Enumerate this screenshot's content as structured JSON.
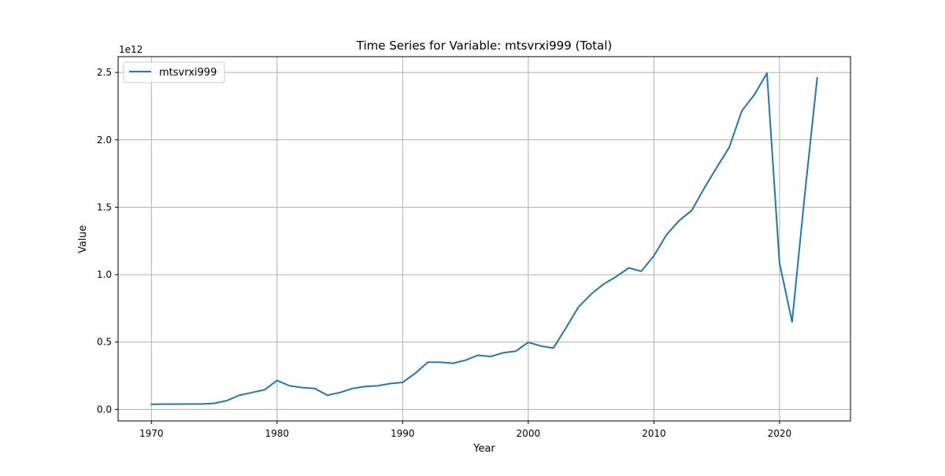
{
  "chart_data": {
    "type": "line",
    "title": "Time Series for Variable: mtsvrxi999 (Total)",
    "xlabel": "Year",
    "ylabel": "Value",
    "offset_label": "1e12",
    "xlim": [
      1967.35,
      2025.65
    ],
    "ylim": [
      -0.0855,
      2.6175
    ],
    "x_ticks": [
      1970,
      1980,
      1990,
      2000,
      2010,
      2020
    ],
    "y_ticks": [
      0.0,
      0.5,
      1.0,
      1.5,
      2.0,
      2.5
    ],
    "x_tick_labels": [
      "1970",
      "1980",
      "1990",
      "2000",
      "2010",
      "2020"
    ],
    "y_tick_labels": [
      "0.0",
      "0.5",
      "1.0",
      "1.5",
      "2.0",
      "2.5"
    ],
    "grid": true,
    "legend_position": "top-left",
    "series": [
      {
        "name": "mtsvrxi999",
        "color": "#1f77b4",
        "x": [
          1970,
          1971,
          1972,
          1973,
          1974,
          1975,
          1976,
          1977,
          1978,
          1979,
          1980,
          1981,
          1982,
          1983,
          1984,
          1985,
          1986,
          1987,
          1988,
          1989,
          1990,
          1991,
          1992,
          1993,
          1994,
          1995,
          1996,
          1997,
          1998,
          1999,
          2000,
          2001,
          2002,
          2003,
          2004,
          2005,
          2006,
          2007,
          2008,
          2009,
          2010,
          2011,
          2012,
          2013,
          2014,
          2015,
          2016,
          2017,
          2018,
          2019,
          2020,
          2021,
          2022,
          2023
        ],
        "values": [
          0.038,
          0.039,
          0.039,
          0.04,
          0.04,
          0.045,
          0.065,
          0.105,
          0.125,
          0.145,
          0.215,
          0.175,
          0.162,
          0.155,
          0.105,
          0.125,
          0.155,
          0.17,
          0.175,
          0.192,
          0.2,
          0.268,
          0.35,
          0.35,
          0.342,
          0.365,
          0.402,
          0.392,
          0.42,
          0.432,
          0.498,
          0.47,
          0.455,
          0.605,
          0.76,
          0.855,
          0.93,
          0.985,
          1.05,
          1.025,
          1.14,
          1.295,
          1.4,
          1.475,
          1.64,
          1.795,
          1.945,
          2.215,
          2.335,
          2.495,
          1.085,
          0.65,
          1.585,
          2.46
        ]
      }
    ]
  }
}
